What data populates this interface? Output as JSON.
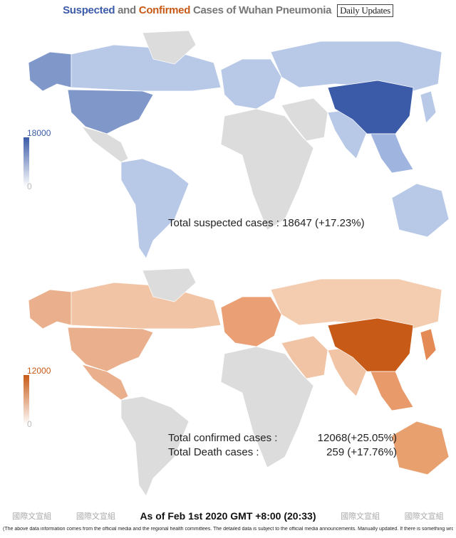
{
  "title": {
    "suspected": "Suspected",
    "and": "and",
    "confirmed": "Confirmed",
    "rest": "Cases of Wuhan Pneumonia",
    "badge": "Daily Updates"
  },
  "maps": [
    {
      "legend_max": "18000",
      "legend_min": "0",
      "totals": [
        {
          "label": "Total suspected cases : 18647 (+17.23%)"
        }
      ]
    },
    {
      "legend_max": "12000",
      "legend_min": "0",
      "totals": [
        {
          "label": "Total confirmed cases :",
          "value": "12068(+25.05%)"
        },
        {
          "label": "Total Death cases :",
          "value": "259 (+17.76%)"
        }
      ]
    }
  ],
  "footer": {
    "watermarks": [
      "國際文宣組",
      "國際文宣組",
      "國際文宣組",
      "國際文宣組"
    ],
    "date": "As of Feb 1st 2020  GMT +8:00 (20:33)",
    "disclaimer": "(The above data information comes from the official media and the regional health committees. The detailed data is subject to the official media announcements. Manually updated. If there is something wrong, please correct me.)"
  }
}
